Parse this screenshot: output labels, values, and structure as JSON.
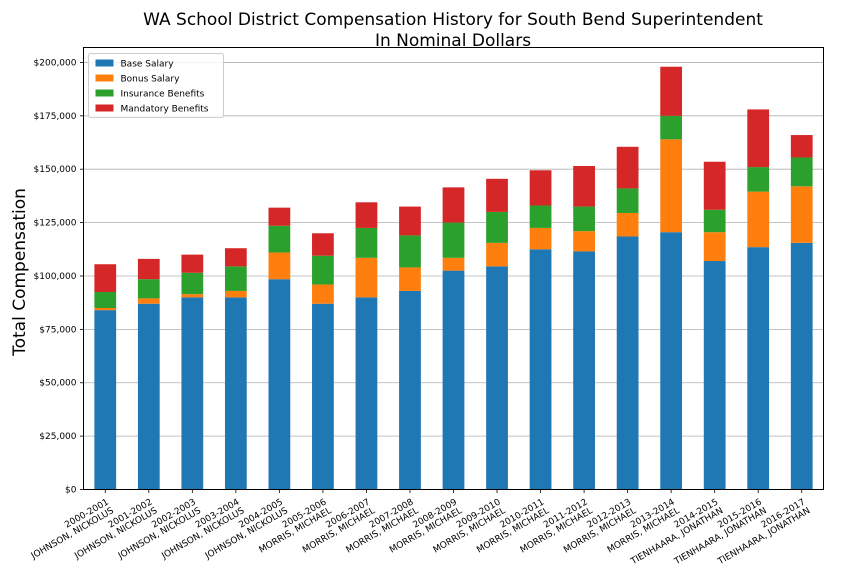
{
  "chart_data": {
    "type": "bar",
    "stacked": true,
    "title": "WA School District Compensation History for South Bend Superintendent",
    "subtitle": "In Nominal Dollars",
    "xlabel": "",
    "ylabel": "Total Compensation",
    "ylim": [
      0,
      207000
    ],
    "yticks": [
      "$0",
      "$25,000",
      "$50,000",
      "$75,000",
      "$100,000",
      "$125,000",
      "$150,000",
      "$175,000",
      "$200,000"
    ],
    "ytick_values": [
      0,
      25000,
      50000,
      75000,
      100000,
      125000,
      150000,
      175000,
      200000
    ],
    "grid": "horizontal",
    "legend_position": "top-left",
    "categories": [
      [
        "2000-2001",
        "JOHNSON, NICKOLUS"
      ],
      [
        "2001-2002",
        "JOHNSON, NICKOLUS"
      ],
      [
        "2002-2003",
        "JOHNSON, NICKOLUS"
      ],
      [
        "2003-2004",
        "JOHNSON, NICKOLUS"
      ],
      [
        "2004-2005",
        "JOHNSON, NICKOLUS"
      ],
      [
        "2005-2006",
        "MORRIS, MICHAEL"
      ],
      [
        "2006-2007",
        "MORRIS, MICHAEL"
      ],
      [
        "2007-2008",
        "MORRIS, MICHAEL"
      ],
      [
        "2008-2009",
        "MORRIS, MICHAEL"
      ],
      [
        "2009-2010",
        "MORRIS, MICHAEL"
      ],
      [
        "2010-2011",
        "MORRIS, MICHAEL"
      ],
      [
        "2011-2012",
        "MORRIS, MICHAEL"
      ],
      [
        "2012-2013",
        "MORRIS, MICHAEL"
      ],
      [
        "2013-2014",
        "MORRIS, MICHAEL"
      ],
      [
        "2014-2015",
        "TIENHAARA, JONATHAN"
      ],
      [
        "2015-2016",
        "TIENHAARA, JONATHAN"
      ],
      [
        "2016-2017",
        "TIENHAARA, JONATHAN"
      ]
    ],
    "series": [
      {
        "name": "Base Salary",
        "color": "#1f77b4",
        "values": [
          84000,
          87000,
          90000,
          90000,
          98500,
          87000,
          90000,
          93000,
          102500,
          104500,
          112500,
          111500,
          118500,
          120500,
          107000,
          113500,
          115500
        ]
      },
      {
        "name": "Bonus Salary",
        "color": "#ff7f0e",
        "values": [
          1000,
          2500,
          1500,
          3000,
          12500,
          9000,
          18500,
          11000,
          6000,
          11000,
          10000,
          9500,
          11000,
          43500,
          13500,
          26000,
          26500
        ]
      },
      {
        "name": "Insurance Benefits",
        "color": "#2ca02c",
        "values": [
          7500,
          9000,
          10000,
          11500,
          12500,
          13500,
          14000,
          15000,
          16500,
          14500,
          10500,
          11500,
          11500,
          11000,
          10500,
          11500,
          13500
        ]
      },
      {
        "name": "Mandatory Benefits",
        "color": "#d62728",
        "values": [
          13000,
          9500,
          8500,
          8500,
          8500,
          10500,
          12000,
          13500,
          16500,
          15500,
          16500,
          19000,
          19500,
          23000,
          22500,
          27000,
          10500
        ]
      }
    ]
  }
}
